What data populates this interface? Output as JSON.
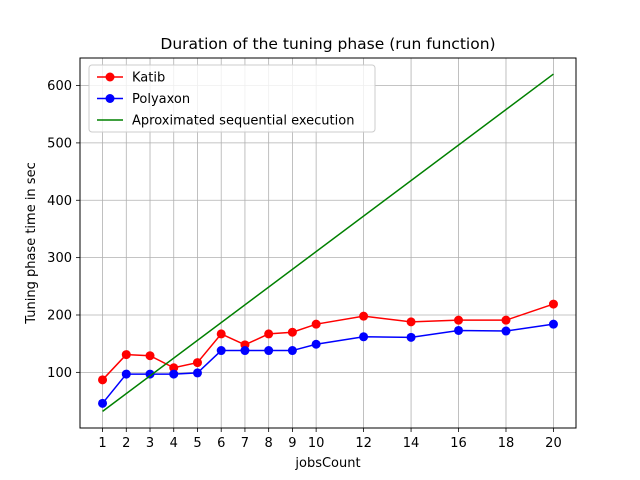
{
  "chart_data": {
    "type": "line",
    "title": "Duration of the tuning phase (run function)",
    "xlabel": "jobsCount",
    "ylabel": "Tuning phase time in sec",
    "xlim": [
      0.05,
      20.95
    ],
    "ylim": [
      3,
      648
    ],
    "xticks": [
      1,
      2,
      3,
      4,
      5,
      6,
      7,
      8,
      9,
      10,
      12,
      14,
      16,
      18,
      20
    ],
    "yticks": [
      100,
      200,
      300,
      400,
      500,
      600
    ],
    "grid": true,
    "legend_position": "top-left",
    "series": [
      {
        "name": "Katib",
        "color": "#ff0000",
        "marker": true,
        "x": [
          1,
          2,
          3,
          4,
          5,
          6,
          7,
          8,
          9,
          10,
          12,
          14,
          16,
          18,
          20
        ],
        "y": [
          87,
          131,
          129,
          108,
          117,
          167,
          148,
          167,
          170,
          184,
          198,
          188,
          191,
          191,
          219
        ]
      },
      {
        "name": "Polyaxon",
        "color": "#0000ff",
        "marker": true,
        "x": [
          1,
          2,
          3,
          4,
          5,
          6,
          7,
          8,
          9,
          10,
          12,
          14,
          16,
          18,
          20
        ],
        "y": [
          46,
          97,
          97,
          97,
          99,
          138,
          138,
          138,
          138,
          149,
          162,
          161,
          173,
          172,
          184
        ]
      },
      {
        "name": "Aproximated sequential execution",
        "color": "#008000",
        "marker": false,
        "x": [
          1,
          20
        ],
        "y": [
          32,
          620
        ]
      }
    ]
  }
}
